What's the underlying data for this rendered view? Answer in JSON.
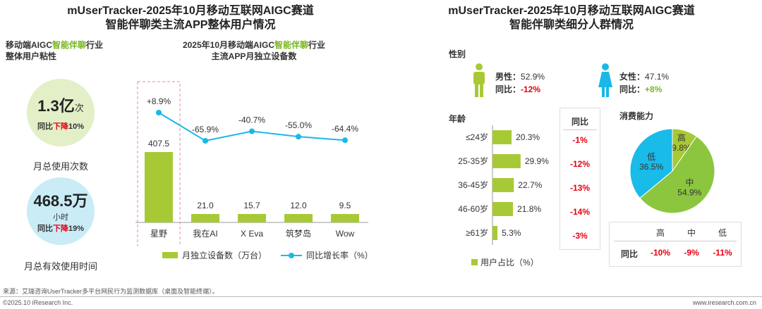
{
  "left": {
    "title_line1": "mUserTracker-2025年10月移动互联网AIGC赛道",
    "title_line2": "智能伴聊类主流APP整体用户情况",
    "stickiness_title_a": "移动端AIGC",
    "stickiness_title_b": "智能伴聊",
    "stickiness_title_c": "行业",
    "stickiness_title_line2": "整体用户粘性",
    "circle1": {
      "value": "1.3",
      "unit": "亿",
      "unit2": "次",
      "yoy_a": "同比",
      "yoy_b": "下降",
      "yoy_c": "10%",
      "caption": "月总使用次数"
    },
    "circle2": {
      "value": "468.5",
      "unit": "万",
      "unit2": "小时",
      "yoy_a": "同比",
      "yoy_b": "下降",
      "yoy_c": "19%",
      "caption": "月总有效使用时间"
    },
    "chart_title_a": "2025年10月移动端AIGC",
    "chart_title_b": "智能伴聊",
    "chart_title_c": "行业",
    "chart_title_line2": "主流APP月独立设备数",
    "legend_bar": "月独立设备数（万台）",
    "legend_line": "同比增长率（%）"
  },
  "chart_data": {
    "type": "bar",
    "categories": [
      "星野",
      "我在AI",
      "X Eva",
      "筑梦岛",
      "Wow"
    ],
    "series": [
      {
        "name": "月独立设备数（万台）",
        "values": [
          407.5,
          21.0,
          15.7,
          12.0,
          9.5
        ],
        "labels": [
          "407.5",
          "21.0",
          "15.7",
          "12.0",
          "9.5"
        ],
        "color": "#a8c936"
      },
      {
        "name": "同比增长率（%）",
        "type": "line",
        "values": [
          8.9,
          -65.9,
          -40.7,
          -55.0,
          -64.4
        ],
        "labels": [
          "+8.9%",
          "-65.9%",
          "-40.7%",
          "-55.0%",
          "-64.4%"
        ],
        "color": "#1ab8e8"
      }
    ]
  },
  "right": {
    "title_line1": "mUserTracker-2025年10月移动互联网AIGC赛道",
    "title_line2": "智能伴聊类细分人群情况",
    "gender_label": "性别",
    "male": {
      "label": "男性：",
      "value": "52.9%",
      "yoy_label": "同比：",
      "yoy": "-12%"
    },
    "female": {
      "label": "女性：",
      "value": "47.1%",
      "yoy_label": "同比：",
      "yoy": "+8%"
    },
    "age_label": "年龄",
    "age_yoy_header": "同比",
    "age_chart": {
      "type": "bar",
      "categories": [
        "≤24岁",
        "25-35岁",
        "36-45岁",
        "46-60岁",
        "≥61岁"
      ],
      "values": [
        20.3,
        29.9,
        22.7,
        21.8,
        5.3
      ],
      "labels": [
        "20.3%",
        "29.9%",
        "22.7%",
        "21.8%",
        "5.3%"
      ],
      "yoy": [
        "-1%",
        "-12%",
        "-13%",
        "-14%",
        "-3%"
      ],
      "legend": "用户占比（%）",
      "color": "#a8c936"
    },
    "consume_label": "消费能力",
    "pie": {
      "type": "pie",
      "slices": [
        {
          "name": "高",
          "value": 9.8,
          "label": "9.8%",
          "color": "#a8c936"
        },
        {
          "name": "中",
          "value": 54.9,
          "label": "54.9%",
          "color": "#8cc63e"
        },
        {
          "name": "低",
          "value": 36.5,
          "label": "36.5%",
          "color": "#19bbe9"
        }
      ]
    },
    "consume_table": {
      "headers": [
        "高",
        "中",
        "低"
      ],
      "row_label": "同比",
      "values": [
        "-10%",
        "-9%",
        "-11%"
      ]
    }
  },
  "footer": {
    "source": "来源：艾瑞咨询UserTracker多平台网民行为监测数据库（桌面及智能终端）。",
    "copyright": "©2025.10 iResearch Inc.",
    "url": "www.iresearch.com.cn"
  }
}
